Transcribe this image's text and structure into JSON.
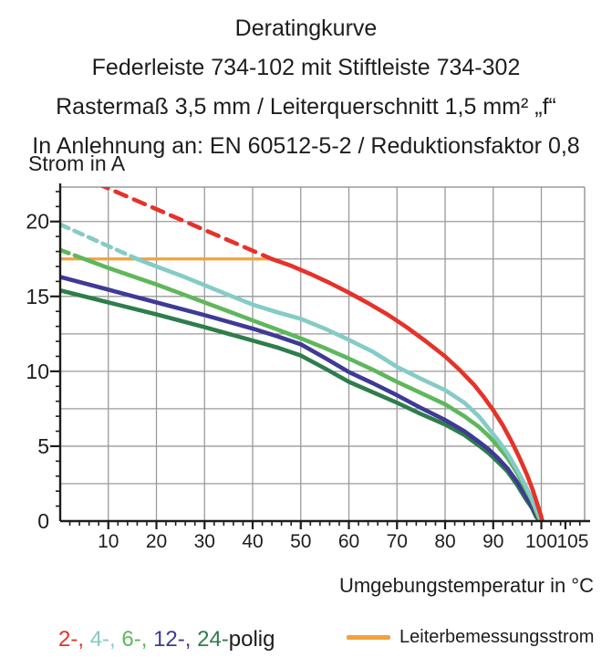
{
  "title": {
    "lines": [
      "Deratingkurve",
      "Federleiste 734-102 mit Stiftleiste 734-302",
      "Rastermaß 3,5 mm / Leiterquerschnitt 1,5 mm² „f“",
      "In Anlehnung an: EN 60512-5-2 / Reduktionsfaktor 0,8"
    ]
  },
  "axes": {
    "y_label": "Strom in A",
    "x_label": "Umgebungstemperatur in °C"
  },
  "legend": {
    "pole_segments": [
      {
        "text": "2-, ",
        "color": "#E5332A"
      },
      {
        "text": "4-, ",
        "color": "#85CBC6"
      },
      {
        "text": "6-, ",
        "color": "#5FB75C"
      },
      {
        "text": "12-, ",
        "color": "#3E3A96"
      },
      {
        "text": "24-",
        "color": "#2E7D4B"
      }
    ],
    "pole_suffix": "polig",
    "rated_label": "Leiterbemessungsstrom",
    "rated_color": "#F2A23C"
  },
  "chart_data": {
    "type": "line",
    "title": "Deratingkurve",
    "xlabel": "Umgebungstemperatur in °C",
    "ylabel": "Strom in A",
    "xlim": [
      0,
      109
    ],
    "ylim": [
      0,
      22.3
    ],
    "grid": true,
    "x_grid_step": 10,
    "y_grid_step": 2.5,
    "x_major_ticks": [
      10,
      20,
      30,
      40,
      50,
      60,
      70,
      80,
      90,
      100,
      105
    ],
    "x_minor_step": 2,
    "y_major_ticks": [
      0,
      5,
      10,
      15,
      20
    ],
    "y_minor_step": 1,
    "rated_current_line": {
      "name": "Leiterbemessungsstrom",
      "value": 17.5,
      "x_range": [
        0,
        44.5
      ],
      "color": "#F2A23C"
    },
    "series": [
      {
        "name": "2-polig",
        "color": "#E5332A",
        "dash": "13 9",
        "dashed_points": [
          [
            0,
            23.6
          ],
          [
            44,
            17.5
          ]
        ],
        "points": [
          [
            44,
            17.5
          ],
          [
            48,
            17.05
          ],
          [
            52,
            16.5
          ],
          [
            56,
            15.9
          ],
          [
            60,
            15.25
          ],
          [
            64,
            14.55
          ],
          [
            68,
            13.8
          ],
          [
            72,
            12.95
          ],
          [
            76,
            12.0
          ],
          [
            80,
            11.0
          ],
          [
            83,
            10.1
          ],
          [
            86,
            9.1
          ],
          [
            88,
            8.3
          ],
          [
            90,
            7.4
          ],
          [
            92,
            6.4
          ],
          [
            94,
            5.2
          ],
          [
            95.5,
            4.2
          ],
          [
            97,
            3.1
          ],
          [
            98.2,
            2.1
          ],
          [
            99.2,
            1.1
          ],
          [
            99.9,
            0.4
          ],
          [
            100.2,
            0
          ]
        ]
      },
      {
        "name": "4-polig",
        "color": "#85CBC6",
        "dash": "10 7",
        "dashed_points": [
          [
            0,
            19.8
          ],
          [
            16,
            17.5
          ]
        ],
        "points": [
          [
            16,
            17.5
          ],
          [
            20,
            17.0
          ],
          [
            25,
            16.4
          ],
          [
            30,
            15.75
          ],
          [
            35,
            15.1
          ],
          [
            40,
            14.45
          ],
          [
            45,
            13.95
          ],
          [
            50,
            13.5
          ],
          [
            55,
            12.85
          ],
          [
            60,
            12.1
          ],
          [
            65,
            11.3
          ],
          [
            70,
            10.3
          ],
          [
            75,
            9.5
          ],
          [
            80,
            8.75
          ],
          [
            84,
            7.9
          ],
          [
            87,
            7.0
          ],
          [
            89,
            6.2
          ],
          [
            91,
            5.4
          ],
          [
            93,
            4.5
          ],
          [
            95,
            3.4
          ],
          [
            96.5,
            2.5
          ],
          [
            98,
            1.5
          ],
          [
            99.2,
            0.6
          ],
          [
            99.9,
            0
          ]
        ]
      },
      {
        "name": "6-polig",
        "color": "#5FB75C",
        "dash": "10 7",
        "dashed_points": [
          [
            0,
            18.1
          ],
          [
            5,
            17.5
          ]
        ],
        "points": [
          [
            5,
            17.5
          ],
          [
            10,
            16.9
          ],
          [
            15,
            16.35
          ],
          [
            20,
            15.8
          ],
          [
            25,
            15.2
          ],
          [
            30,
            14.6
          ],
          [
            35,
            14.0
          ],
          [
            40,
            13.4
          ],
          [
            45,
            12.8
          ],
          [
            50,
            12.2
          ],
          [
            55,
            11.55
          ],
          [
            60,
            10.85
          ],
          [
            65,
            10.1
          ],
          [
            70,
            9.3
          ],
          [
            75,
            8.55
          ],
          [
            80,
            7.8
          ],
          [
            84,
            7.0
          ],
          [
            87,
            6.3
          ],
          [
            89,
            5.7
          ],
          [
            91,
            5.0
          ],
          [
            93,
            4.2
          ],
          [
            95,
            3.2
          ],
          [
            96.5,
            2.3
          ],
          [
            98,
            1.4
          ],
          [
            99.1,
            0.5
          ],
          [
            99.8,
            0
          ]
        ]
      },
      {
        "name": "12-polig",
        "color": "#3E3A96",
        "dash": null,
        "dashed_points": [],
        "points": [
          [
            0,
            16.3
          ],
          [
            10,
            15.45
          ],
          [
            20,
            14.6
          ],
          [
            30,
            13.75
          ],
          [
            40,
            12.85
          ],
          [
            45,
            12.35
          ],
          [
            50,
            11.8
          ],
          [
            55,
            10.9
          ],
          [
            60,
            9.95
          ],
          [
            65,
            9.2
          ],
          [
            70,
            8.4
          ],
          [
            75,
            7.55
          ],
          [
            80,
            6.75
          ],
          [
            84,
            6.0
          ],
          [
            87,
            5.3
          ],
          [
            89,
            4.8
          ],
          [
            91,
            4.2
          ],
          [
            93,
            3.5
          ],
          [
            95,
            2.6
          ],
          [
            96.5,
            1.8
          ],
          [
            98,
            1.0
          ],
          [
            99,
            0.4
          ],
          [
            99.7,
            0
          ]
        ]
      },
      {
        "name": "24-polig",
        "color": "#2E7D4B",
        "dash": null,
        "dashed_points": [],
        "points": [
          [
            0,
            15.4
          ],
          [
            10,
            14.6
          ],
          [
            20,
            13.8
          ],
          [
            30,
            12.95
          ],
          [
            40,
            12.05
          ],
          [
            45,
            11.6
          ],
          [
            50,
            11.05
          ],
          [
            55,
            10.2
          ],
          [
            60,
            9.3
          ],
          [
            65,
            8.6
          ],
          [
            70,
            7.9
          ],
          [
            75,
            7.15
          ],
          [
            80,
            6.45
          ],
          [
            84,
            5.75
          ],
          [
            87,
            5.05
          ],
          [
            89,
            4.55
          ],
          [
            91,
            3.95
          ],
          [
            93,
            3.3
          ],
          [
            95,
            2.4
          ],
          [
            96.5,
            1.6
          ],
          [
            98,
            0.9
          ],
          [
            98.9,
            0.3
          ],
          [
            99.6,
            0
          ]
        ]
      }
    ]
  }
}
